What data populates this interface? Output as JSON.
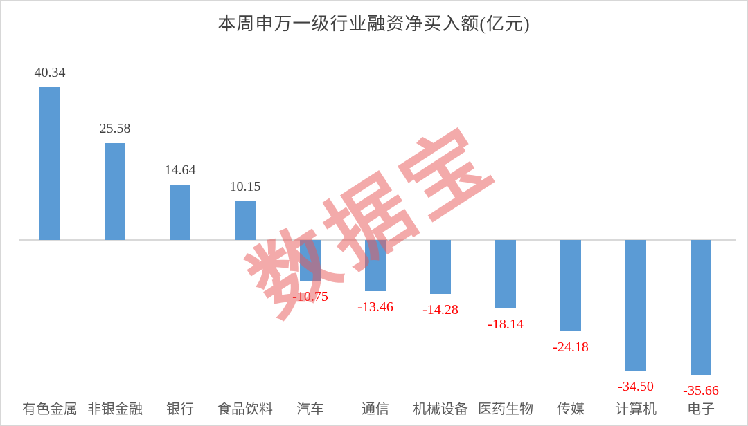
{
  "chart_data": {
    "type": "bar",
    "title": "本周申万一级行业融资净买入额(亿元)",
    "categories": [
      "有色金属",
      "非银金融",
      "银行",
      "食品饮料",
      "汽车",
      "通信",
      "机械设备",
      "医药生物",
      "传媒",
      "计算机",
      "电子"
    ],
    "values": [
      40.34,
      25.58,
      14.64,
      10.15,
      -10.75,
      -13.46,
      -14.28,
      -18.14,
      -24.18,
      -34.5,
      -35.66
    ],
    "value_labels": [
      "40.34",
      "25.58",
      "14.64",
      "10.15",
      "-10.75",
      "-13.46",
      "-14.28",
      "-18.14",
      "-24.18",
      "-34.50",
      "-35.66"
    ],
    "xlabel": "",
    "ylabel": "",
    "ylim": [
      -40,
      45
    ],
    "grid": false,
    "legend": "none",
    "bar_color": "#5B9BD5",
    "positive_label_color": "#404040",
    "negative_label_color": "#FF0000",
    "category_label_color": "#595959",
    "title_color": "#404040",
    "axis_line_color": "#D9D9D9"
  },
  "watermark": {
    "text": "数据宝",
    "color": "#E85858"
  }
}
